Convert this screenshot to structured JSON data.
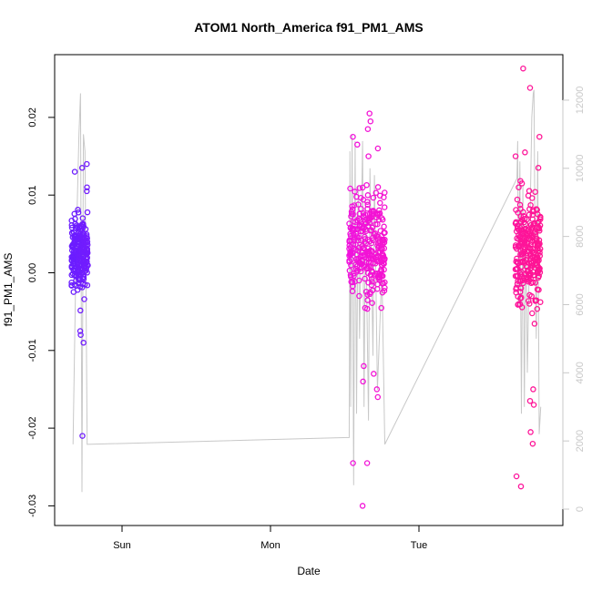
{
  "chart_data": {
    "type": "scatter",
    "title": "ATOM1 North_America f91_PM1_AMS",
    "xlabel": "Date",
    "ylabel": "f91_PM1_AMS",
    "ylim": [
      -0.03,
      0.027
    ],
    "x_ticks": [
      {
        "label": "Sun",
        "value": 0
      },
      {
        "label": "Mon",
        "value": 1
      },
      {
        "label": "Tue",
        "value": 2
      }
    ],
    "y_ticks": [
      -0.03,
      -0.02,
      -0.01,
      0.0,
      0.01,
      0.02
    ],
    "y_tick_labels": [
      "-0.03",
      "-0.02",
      "-0.01",
      "0.00",
      "0.01",
      "0.02"
    ],
    "y2_ticks": [
      0,
      2000,
      4000,
      6000,
      8000,
      10000,
      12000
    ],
    "y2_tick_labels": [
      "0",
      "2000",
      "4000",
      "6000",
      "8000",
      "10000",
      "12000"
    ],
    "grid": false,
    "colors": {
      "background_series": "#c8c8c8",
      "point_start": "#6a1dff",
      "point_mid": "#ee12ee",
      "point_end": "#ff1493"
    },
    "secondary_series": [
      {
        "x": -0.33,
        "y": 1900
      },
      {
        "x": -0.31,
        "y": 7500
      },
      {
        "x": -0.29,
        "y": 11000
      },
      {
        "x": -0.28,
        "y": 12200
      },
      {
        "x": -0.27,
        "y": 500
      },
      {
        "x": -0.26,
        "y": 11000
      },
      {
        "x": -0.25,
        "y": 10500
      },
      {
        "x": -0.235,
        "y": 1900
      },
      {
        "x": 1.53,
        "y": 2100
      },
      {
        "x": 1.535,
        "y": 10500
      },
      {
        "x": 1.54,
        "y": 3000
      },
      {
        "x": 1.55,
        "y": 11000
      },
      {
        "x": 1.56,
        "y": 700
      },
      {
        "x": 1.57,
        "y": 10800
      },
      {
        "x": 1.58,
        "y": 2800
      },
      {
        "x": 1.59,
        "y": 9500
      },
      {
        "x": 1.6,
        "y": 5000
      },
      {
        "x": 1.62,
        "y": 10800
      },
      {
        "x": 1.63,
        "y": 3000
      },
      {
        "x": 1.64,
        "y": 9000
      },
      {
        "x": 1.66,
        "y": 2600
      },
      {
        "x": 1.67,
        "y": 10000
      },
      {
        "x": 1.69,
        "y": 4500
      },
      {
        "x": 1.7,
        "y": 9800
      },
      {
        "x": 1.72,
        "y": 3500
      },
      {
        "x": 1.75,
        "y": 7000
      },
      {
        "x": 1.77,
        "y": 1900
      },
      {
        "x": 2.66,
        "y": 9700
      },
      {
        "x": 2.665,
        "y": 10800
      },
      {
        "x": 2.67,
        "y": 6000
      },
      {
        "x": 2.68,
        "y": 10200
      },
      {
        "x": 2.69,
        "y": 2800
      },
      {
        "x": 2.7,
        "y": 9500
      },
      {
        "x": 2.71,
        "y": 3000
      },
      {
        "x": 2.72,
        "y": 8500
      },
      {
        "x": 2.73,
        "y": 4000
      },
      {
        "x": 2.75,
        "y": 9000
      },
      {
        "x": 2.76,
        "y": 11500
      },
      {
        "x": 2.77,
        "y": 12200
      },
      {
        "x": 2.775,
        "y": 12300
      },
      {
        "x": 2.78,
        "y": 9000
      },
      {
        "x": 2.79,
        "y": 5000
      },
      {
        "x": 2.8,
        "y": 10500
      },
      {
        "x": 2.81,
        "y": 2200
      },
      {
        "x": 2.82,
        "y": 3000
      }
    ],
    "clusters": [
      {
        "x_range": [
          -0.34,
          -0.23
        ],
        "n": 240,
        "center": 0.0025,
        "spread": 0.0032,
        "outliers": [
          0.0135,
          0.014,
          0.013,
          -0.021,
          -0.009,
          -0.008,
          0.011,
          -0.0075,
          0.0105
        ]
      },
      {
        "x_range": [
          1.53,
          1.77
        ],
        "n": 300,
        "center": 0.0032,
        "spread": 0.0045,
        "outliers": [
          0.0205,
          0.0195,
          0.0175,
          0.016,
          0.015,
          -0.0245,
          -0.0245,
          -0.03,
          -0.016,
          -0.015,
          -0.013,
          -0.014,
          0.0185,
          0.0165,
          -0.012
        ]
      },
      {
        "x_range": [
          2.65,
          2.82
        ],
        "n": 260,
        "center": 0.003,
        "spread": 0.0045,
        "outliers": [
          0.0263,
          0.0238,
          0.0175,
          0.0155,
          0.0135,
          -0.0275,
          -0.0262,
          -0.022,
          -0.0205,
          -0.017,
          -0.0165,
          -0.015,
          0.015,
          0.0115
        ]
      }
    ]
  }
}
